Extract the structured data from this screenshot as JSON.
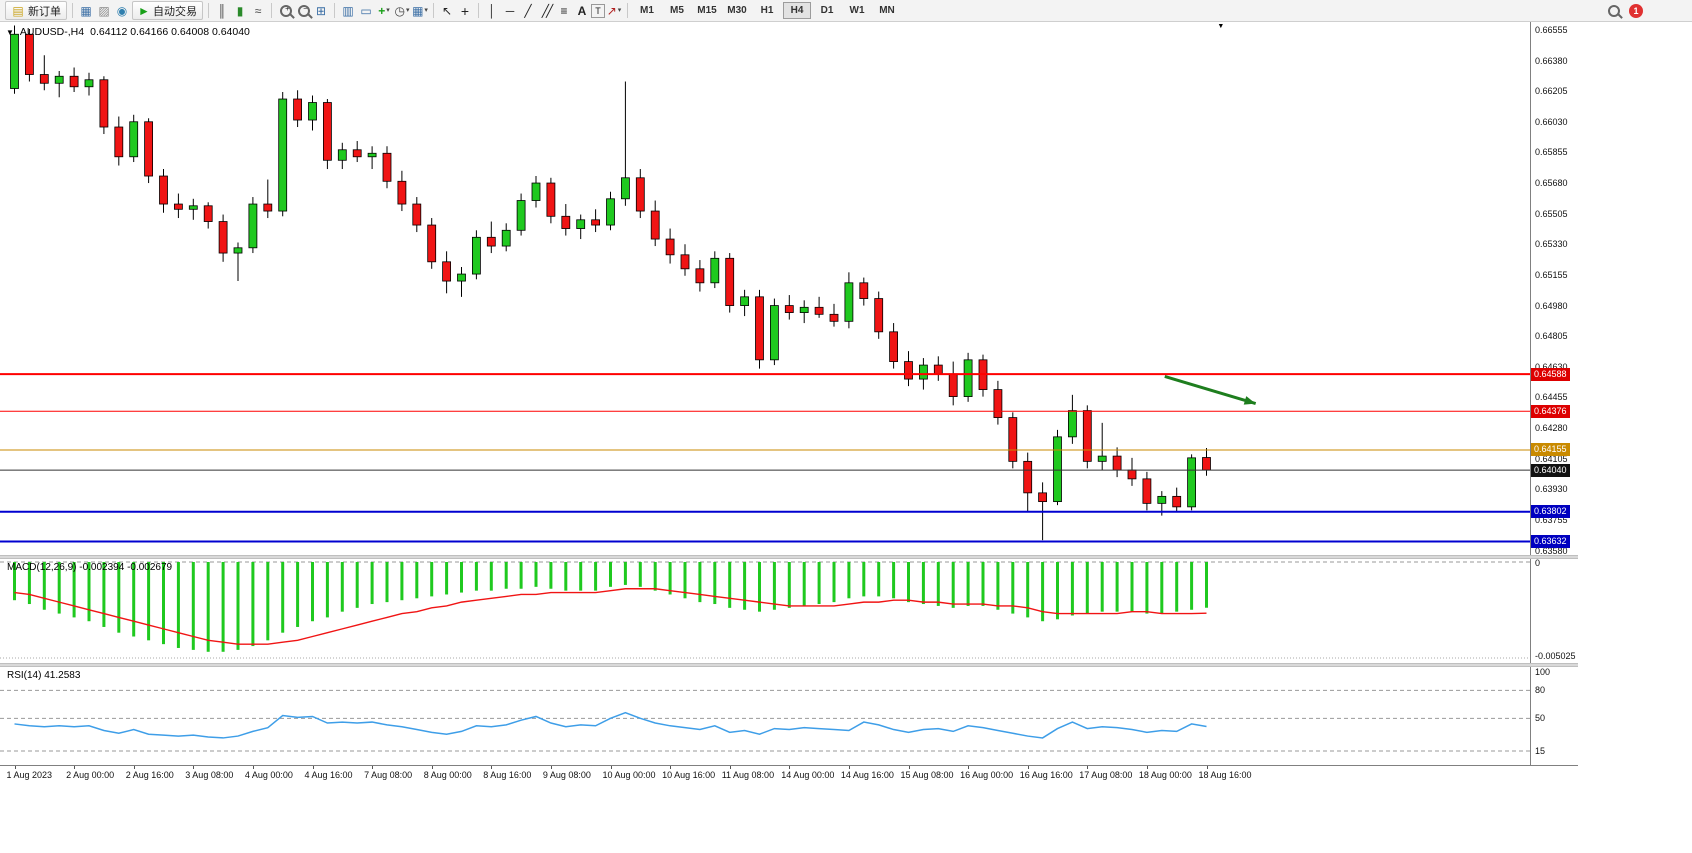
{
  "toolbar": {
    "new_order_label": "新订单",
    "autotrading_label": "自动交易",
    "timeframe_buttons": [
      "M1",
      "M5",
      "M15",
      "M30",
      "H1",
      "H4",
      "D1",
      "W1",
      "MN"
    ],
    "active_timeframe": "H4",
    "notification_badge": "1",
    "icons": {
      "new_order": "▤",
      "charts": "▦",
      "profiles": "▨",
      "data_window": "◉",
      "autotrading_play": "►",
      "chart_bars": "║",
      "chart_candles": "▮",
      "chart_line": "≈",
      "zoom_in": "+",
      "zoom_out": "−",
      "tile_windows": "⊞",
      "indicators_window": "▥",
      "objects_list": "▭",
      "add_indicator": "+",
      "periods_clock": "◷",
      "templates": "▦",
      "cursor": "↖",
      "crosshair": "+",
      "vertical_line": "│",
      "horizontal_line": "─",
      "trendline": "╱",
      "channel": "╱╱",
      "fibonacci": "≡",
      "text": "A",
      "text_label": "T",
      "arrows_tool": "↗",
      "dropdown_caret": "▾"
    }
  },
  "chart": {
    "symbol_period": "AUDUSD-,H4",
    "ohlc_line": "0.64112 0.64166 0.64008 0.64040",
    "one_click_glyph": "▼",
    "end_marker_glyph": "▼"
  },
  "macd_panel": {
    "label": "MACD(12,26,9) -0.002394 -0.002679",
    "scale_max": "0",
    "scale_min": "-0.005025"
  },
  "rsi_panel": {
    "label": "RSI(14) 41.2583",
    "scale_labels": [
      "100",
      "80",
      "50",
      "15"
    ]
  },
  "chart_data": [
    {
      "type": "candlestick",
      "title": "AUDUSD-,H4",
      "ylim": [
        0.63555,
        0.666
      ],
      "grid": false,
      "up_color": "#1FC91F",
      "down_color": "#F01414",
      "y_ticks": [
        "0.66555",
        "0.66380",
        "0.66205",
        "0.66030",
        "0.65855",
        "0.65680",
        "0.65505",
        "0.65330",
        "0.65155",
        "0.64980",
        "0.64805",
        "0.64630",
        "0.64455",
        "0.64280",
        "0.64105",
        "0.63930",
        "0.63755",
        "0.63580"
      ],
      "x_labels": [
        "1 Aug 2023",
        "2 Aug 00:00",
        "2 Aug 16:00",
        "3 Aug 08:00",
        "4 Aug 00:00",
        "4 Aug 16:00",
        "7 Aug 08:00",
        "8 Aug 00:00",
        "8 Aug 16:00",
        "9 Aug 08:00",
        "10 Aug 00:00",
        "10 Aug 16:00",
        "11 Aug 08:00",
        "14 Aug 00:00",
        "14 Aug 16:00",
        "15 Aug 08:00",
        "16 Aug 00:00",
        "16 Aug 16:00",
        "17 Aug 08:00",
        "18 Aug 00:00",
        "18 Aug 16:00"
      ],
      "x_label_bars": [
        0,
        4,
        8,
        12,
        16,
        20,
        24,
        28,
        32,
        36,
        40,
        44,
        48,
        52,
        56,
        60,
        64,
        68,
        72,
        76,
        80
      ],
      "candles": [
        [
          0.6622,
          0.6658,
          0.6619,
          0.6653
        ],
        [
          0.6653,
          0.6656,
          0.6626,
          0.663
        ],
        [
          0.663,
          0.6641,
          0.6621,
          0.6625
        ],
        [
          0.6625,
          0.6632,
          0.6617,
          0.6629
        ],
        [
          0.6629,
          0.6634,
          0.662,
          0.6623
        ],
        [
          0.6623,
          0.6631,
          0.6618,
          0.6627
        ],
        [
          0.6627,
          0.6629,
          0.6596,
          0.66
        ],
        [
          0.66,
          0.6606,
          0.6578,
          0.6583
        ],
        [
          0.6583,
          0.6607,
          0.658,
          0.6603
        ],
        [
          0.6603,
          0.6605,
          0.6568,
          0.6572
        ],
        [
          0.6572,
          0.6576,
          0.6551,
          0.6556
        ],
        [
          0.6556,
          0.6562,
          0.6548,
          0.6553
        ],
        [
          0.6553,
          0.6559,
          0.6547,
          0.6555
        ],
        [
          0.6555,
          0.6557,
          0.6542,
          0.6546
        ],
        [
          0.6546,
          0.655,
          0.6523,
          0.6528
        ],
        [
          0.6528,
          0.6534,
          0.6512,
          0.6531
        ],
        [
          0.6531,
          0.656,
          0.6528,
          0.6556
        ],
        [
          0.6556,
          0.657,
          0.6548,
          0.6552
        ],
        [
          0.6552,
          0.662,
          0.6549,
          0.6616
        ],
        [
          0.6616,
          0.6621,
          0.66,
          0.6604
        ],
        [
          0.6604,
          0.6618,
          0.6598,
          0.6614
        ],
        [
          0.6614,
          0.6616,
          0.6576,
          0.6581
        ],
        [
          0.6581,
          0.6591,
          0.6576,
          0.6587
        ],
        [
          0.6587,
          0.6592,
          0.658,
          0.6583
        ],
        [
          0.6583,
          0.6589,
          0.6576,
          0.6585
        ],
        [
          0.6585,
          0.6589,
          0.6565,
          0.6569
        ],
        [
          0.6569,
          0.6575,
          0.6552,
          0.6556
        ],
        [
          0.6556,
          0.656,
          0.654,
          0.6544
        ],
        [
          0.6544,
          0.6548,
          0.6519,
          0.6523
        ],
        [
          0.6523,
          0.6529,
          0.6505,
          0.6512
        ],
        [
          0.6512,
          0.652,
          0.6503,
          0.6516
        ],
        [
          0.6516,
          0.6541,
          0.6513,
          0.6537
        ],
        [
          0.6537,
          0.6546,
          0.6528,
          0.6532
        ],
        [
          0.6532,
          0.6545,
          0.6529,
          0.6541
        ],
        [
          0.6541,
          0.6562,
          0.6538,
          0.6558
        ],
        [
          0.6558,
          0.6572,
          0.6554,
          0.6568
        ],
        [
          0.6568,
          0.6571,
          0.6545,
          0.6549
        ],
        [
          0.6549,
          0.6556,
          0.6538,
          0.6542
        ],
        [
          0.6542,
          0.655,
          0.6536,
          0.6547
        ],
        [
          0.6547,
          0.6553,
          0.654,
          0.6544
        ],
        [
          0.6544,
          0.6563,
          0.6541,
          0.6559
        ],
        [
          0.6559,
          0.6626,
          0.6555,
          0.6571
        ],
        [
          0.6571,
          0.6576,
          0.6548,
          0.6552
        ],
        [
          0.6552,
          0.6558,
          0.6532,
          0.6536
        ],
        [
          0.6536,
          0.6542,
          0.6522,
          0.6527
        ],
        [
          0.6527,
          0.6533,
          0.6515,
          0.6519
        ],
        [
          0.6519,
          0.6524,
          0.6506,
          0.6511
        ],
        [
          0.6511,
          0.6529,
          0.6508,
          0.6525
        ],
        [
          0.6525,
          0.6528,
          0.6494,
          0.6498
        ],
        [
          0.6498,
          0.6507,
          0.6492,
          0.6503
        ],
        [
          0.6503,
          0.6507,
          0.6462,
          0.6467
        ],
        [
          0.6467,
          0.6502,
          0.6464,
          0.6498
        ],
        [
          0.6498,
          0.6504,
          0.649,
          0.6494
        ],
        [
          0.6494,
          0.6501,
          0.6488,
          0.6497
        ],
        [
          0.6497,
          0.6503,
          0.6491,
          0.6493
        ],
        [
          0.6493,
          0.6499,
          0.6486,
          0.6489
        ],
        [
          0.6489,
          0.6517,
          0.6485,
          0.6511
        ],
        [
          0.6511,
          0.6514,
          0.6498,
          0.6502
        ],
        [
          0.6502,
          0.6506,
          0.6479,
          0.6483
        ],
        [
          0.6483,
          0.6488,
          0.6462,
          0.6466
        ],
        [
          0.6466,
          0.6472,
          0.6452,
          0.6456
        ],
        [
          0.6456,
          0.6468,
          0.645,
          0.6464
        ],
        [
          0.6464,
          0.6469,
          0.6455,
          0.6459
        ],
        [
          0.6459,
          0.6466,
          0.6441,
          0.6446
        ],
        [
          0.6446,
          0.6471,
          0.6443,
          0.6467
        ],
        [
          0.6467,
          0.647,
          0.6446,
          0.645
        ],
        [
          0.645,
          0.6455,
          0.643,
          0.6434
        ],
        [
          0.6434,
          0.6437,
          0.6405,
          0.6409
        ],
        [
          0.6409,
          0.6414,
          0.638,
          0.6391
        ],
        [
          0.6391,
          0.6397,
          0.6364,
          0.6386
        ],
        [
          0.6386,
          0.6427,
          0.6384,
          0.6423
        ],
        [
          0.6423,
          0.6447,
          0.6419,
          0.6438
        ],
        [
          0.6438,
          0.6441,
          0.6405,
          0.6409
        ],
        [
          0.6409,
          0.6431,
          0.6404,
          0.6412
        ],
        [
          0.6412,
          0.6417,
          0.64,
          0.6404
        ],
        [
          0.6404,
          0.6411,
          0.6395,
          0.6399
        ],
        [
          0.6399,
          0.6403,
          0.6381,
          0.6385
        ],
        [
          0.6385,
          0.6392,
          0.6378,
          0.6389
        ],
        [
          0.6389,
          0.6394,
          0.638,
          0.6383
        ],
        [
          0.6383,
          0.6413,
          0.6381,
          0.6411
        ],
        [
          0.64112,
          0.64166,
          0.64008,
          0.6404
        ]
      ],
      "hlines": [
        {
          "price": 0.64588,
          "color": "#FF0000",
          "width": 2,
          "label": "0.64588",
          "tag": "#DD0000"
        },
        {
          "price": 0.64376,
          "color": "#FF0000",
          "width": 1,
          "label": "0.64376",
          "tag": "#DD0000"
        },
        {
          "price": 0.64155,
          "color": "#C98A00",
          "width": 1,
          "label": "0.64155",
          "tag": "#C98A00"
        },
        {
          "price": 0.6404,
          "color": "#333333",
          "width": 1,
          "label": "0.64040",
          "tag": "#111111"
        },
        {
          "price": 0.63802,
          "color": "#0000D0",
          "width": 2,
          "label": "0.63802",
          "tag": "#0000C0"
        },
        {
          "price": 0.63632,
          "color": "#0000D0",
          "width": 2,
          "label": "0.63632",
          "tag": "#0000C0"
        }
      ],
      "arrow_object": {
        "bar1": 77.2,
        "price1": 0.64575,
        "bar2": 83.3,
        "price2": 0.6442,
        "color": "#1E7E1E",
        "width": 3
      }
    },
    {
      "type": "bar",
      "title": "MACD(12,26,9)",
      "values_label": "-0.002394 -0.002679",
      "ylim": [
        -0.005025,
        0
      ],
      "histogram_color": "#1FC91F",
      "signal_color": "#F01414",
      "histogram": [
        -0.002,
        -0.0022,
        -0.0025,
        -0.0027,
        -0.0029,
        -0.0031,
        -0.0034,
        -0.0037,
        -0.0039,
        -0.0041,
        -0.0043,
        -0.0045,
        -0.0046,
        -0.0047,
        -0.0047,
        -0.0046,
        -0.0044,
        -0.0041,
        -0.0037,
        -0.0034,
        -0.0031,
        -0.0029,
        -0.0026,
        -0.0024,
        -0.0022,
        -0.0021,
        -0.002,
        -0.0019,
        -0.0018,
        -0.0017,
        -0.0016,
        -0.0015,
        -0.0015,
        -0.0014,
        -0.0014,
        -0.0013,
        -0.0014,
        -0.0015,
        -0.0015,
        -0.0015,
        -0.0013,
        -0.0012,
        -0.0013,
        -0.0015,
        -0.0017,
        -0.0019,
        -0.0021,
        -0.0022,
        -0.0024,
        -0.0025,
        -0.0026,
        -0.0025,
        -0.0024,
        -0.0023,
        -0.0022,
        -0.0021,
        -0.0019,
        -0.0018,
        -0.0018,
        -0.0019,
        -0.0021,
        -0.0022,
        -0.0023,
        -0.0024,
        -0.0023,
        -0.0023,
        -0.0025,
        -0.0027,
        -0.0029,
        -0.0031,
        -0.003,
        -0.0028,
        -0.0027,
        -0.0026,
        -0.0026,
        -0.0026,
        -0.0027,
        -0.0027,
        -0.0026,
        -0.0025,
        -0.002394
      ],
      "signal": [
        -0.0016,
        -0.0017,
        -0.0019,
        -0.0021,
        -0.0023,
        -0.0025,
        -0.0027,
        -0.0029,
        -0.0031,
        -0.0033,
        -0.0035,
        -0.0037,
        -0.0039,
        -0.0041,
        -0.0042,
        -0.0043,
        -0.0043,
        -0.0043,
        -0.0042,
        -0.0041,
        -0.0039,
        -0.0037,
        -0.0035,
        -0.0033,
        -0.0031,
        -0.0029,
        -0.0027,
        -0.0026,
        -0.0024,
        -0.0023,
        -0.0021,
        -0.002,
        -0.0019,
        -0.0018,
        -0.0017,
        -0.0017,
        -0.0016,
        -0.0016,
        -0.0016,
        -0.0016,
        -0.0015,
        -0.0014,
        -0.0014,
        -0.0014,
        -0.0015,
        -0.0016,
        -0.0017,
        -0.0018,
        -0.0019,
        -0.002,
        -0.0021,
        -0.0022,
        -0.0023,
        -0.0023,
        -0.0023,
        -0.0023,
        -0.0022,
        -0.0021,
        -0.0021,
        -0.002,
        -0.002,
        -0.0021,
        -0.0021,
        -0.0022,
        -0.0022,
        -0.0022,
        -0.0023,
        -0.0023,
        -0.0024,
        -0.0026,
        -0.0027,
        -0.0027,
        -0.0027,
        -0.0027,
        -0.0027,
        -0.0026,
        -0.0026,
        -0.0027,
        -0.0027,
        -0.0027,
        -0.002679
      ]
    },
    {
      "type": "line",
      "title": "RSI(14)",
      "current_value": 41.2583,
      "ylim": [
        0,
        105
      ],
      "levels": [
        80,
        50,
        15
      ],
      "color": "#3E9EE8",
      "values": [
        44,
        42,
        41,
        42,
        41,
        42,
        37,
        34,
        38,
        33,
        32,
        31,
        32,
        30,
        29,
        31,
        36,
        40,
        53,
        51,
        52,
        45,
        46,
        45,
        46,
        43,
        41,
        38,
        35,
        33,
        36,
        42,
        41,
        43,
        48,
        52,
        45,
        41,
        43,
        42,
        50,
        56,
        50,
        45,
        42,
        40,
        38,
        42,
        35,
        37,
        33,
        39,
        38,
        40,
        39,
        38,
        37,
        46,
        43,
        38,
        35,
        38,
        39,
        36,
        42,
        40,
        37,
        34,
        31,
        29,
        39,
        46,
        39,
        41,
        40,
        38,
        35,
        37,
        36,
        44,
        41.26
      ]
    }
  ]
}
